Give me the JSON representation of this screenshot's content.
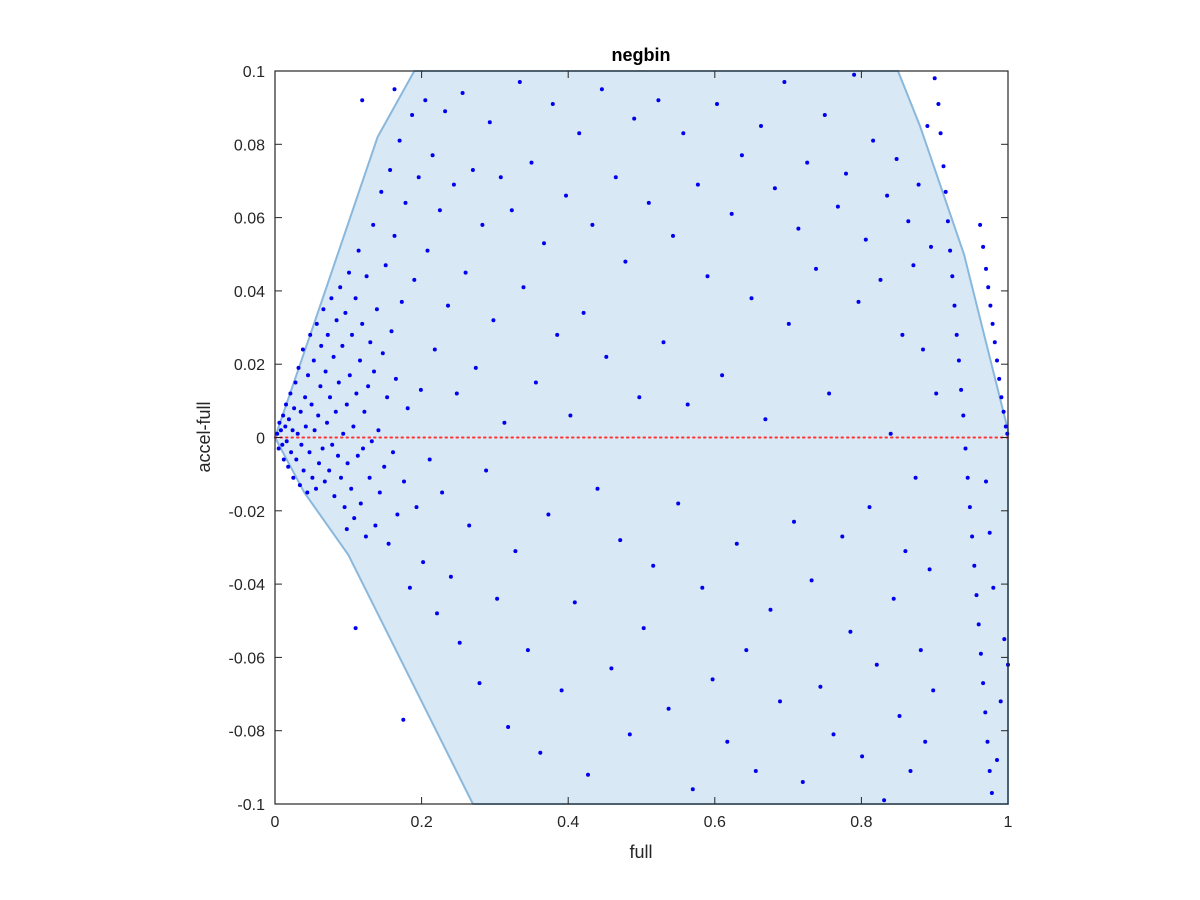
{
  "chart_data": {
    "type": "scatter",
    "title": "negbin",
    "xlabel": "full",
    "ylabel": "accel-full",
    "xlim": [
      0,
      1
    ],
    "ylim": [
      -0.1,
      0.1
    ],
    "xticks": [
      0,
      0.2,
      0.4,
      0.6,
      0.8,
      1
    ],
    "xtick_labels": [
      "0",
      "0.2",
      "0.4",
      "0.6",
      "0.8",
      "1"
    ],
    "yticks": [
      -0.1,
      -0.08,
      -0.06,
      -0.04,
      -0.02,
      0,
      0.02,
      0.04,
      0.06,
      0.08,
      0.1
    ],
    "ytick_labels": [
      "-0.1",
      "-0.08",
      "-0.06",
      "-0.04",
      "-0.02",
      "0",
      "0.02",
      "0.04",
      "0.06",
      "0.08",
      "0.1"
    ],
    "grid": false,
    "legend": "none",
    "colors": {
      "points": "#0000ee",
      "region_fill": "#d8e8f4",
      "region_edge": "#8ab8dc",
      "zero_line": "#ff3333",
      "axes": "#262626"
    },
    "region": [
      [
        0,
        0
      ],
      [
        0.06,
        0.035
      ],
      [
        0.14,
        0.082
      ],
      [
        0.19,
        0.1
      ],
      [
        0.85,
        0.1
      ],
      [
        0.88,
        0.085
      ],
      [
        0.94,
        0.05
      ],
      [
        1.0,
        0.002
      ],
      [
        1.0,
        -0.1
      ],
      [
        0.27,
        -0.1
      ],
      [
        0.2,
        -0.072
      ],
      [
        0.1,
        -0.032
      ],
      [
        0.04,
        -0.015
      ],
      [
        0,
        0
      ]
    ],
    "zero_line": {
      "y": 0,
      "style": "dotted"
    },
    "points": [
      [
        0.003,
        0.001
      ],
      [
        0.005,
        -0.003
      ],
      [
        0.006,
        0.004
      ],
      [
        0.008,
        0.002
      ],
      [
        0.01,
        -0.002
      ],
      [
        0.011,
        0.006
      ],
      [
        0.012,
        -0.006
      ],
      [
        0.014,
        0.003
      ],
      [
        0.015,
        0.009
      ],
      [
        0.016,
        -0.001
      ],
      [
        0.018,
        -0.008
      ],
      [
        0.019,
        0.005
      ],
      [
        0.021,
        0.012
      ],
      [
        0.022,
        -0.004
      ],
      [
        0.024,
        0.002
      ],
      [
        0.025,
        -0.011
      ],
      [
        0.026,
        0.008
      ],
      [
        0.028,
        0.015
      ],
      [
        0.029,
        -0.006
      ],
      [
        0.031,
        0.001
      ],
      [
        0.032,
        0.019
      ],
      [
        0.034,
        -0.013
      ],
      [
        0.035,
        0.007
      ],
      [
        0.036,
        -0.002
      ],
      [
        0.038,
        0.024
      ],
      [
        0.039,
        -0.009
      ],
      [
        0.041,
        0.011
      ],
      [
        0.042,
        0.003
      ],
      [
        0.044,
        -0.015
      ],
      [
        0.045,
        0.017
      ],
      [
        0.047,
        -0.004
      ],
      [
        0.048,
        0.028
      ],
      [
        0.05,
        0.009
      ],
      [
        0.051,
        -0.011
      ],
      [
        0.053,
        0.021
      ],
      [
        0.054,
        0.002
      ],
      [
        0.056,
        -0.014
      ],
      [
        0.057,
        0.031
      ],
      [
        0.059,
        0.006
      ],
      [
        0.06,
        -0.007
      ],
      [
        0.062,
        0.014
      ],
      [
        0.063,
        0.025
      ],
      [
        0.065,
        -0.003
      ],
      [
        0.066,
        0.035
      ],
      [
        0.068,
        -0.012
      ],
      [
        0.069,
        0.018
      ],
      [
        0.071,
        0.004
      ],
      [
        0.072,
        0.028
      ],
      [
        0.074,
        -0.009
      ],
      [
        0.075,
        0.011
      ],
      [
        0.077,
        0.038
      ],
      [
        0.078,
        -0.002
      ],
      [
        0.08,
        0.022
      ],
      [
        0.081,
        -0.016
      ],
      [
        0.083,
        0.007
      ],
      [
        0.084,
        0.032
      ],
      [
        0.086,
        -0.005
      ],
      [
        0.087,
        0.015
      ],
      [
        0.089,
        0.041
      ],
      [
        0.09,
        -0.011
      ],
      [
        0.092,
        0.025
      ],
      [
        0.093,
        0.001
      ],
      [
        0.095,
        -0.019
      ],
      [
        0.096,
        0.034
      ],
      [
        0.098,
        0.009
      ],
      [
        0.099,
        -0.007
      ],
      [
        0.101,
        0.045
      ],
      [
        0.102,
        0.017
      ],
      [
        0.104,
        -0.014
      ],
      [
        0.105,
        0.028
      ],
      [
        0.107,
        0.003
      ],
      [
        0.108,
        -0.022
      ],
      [
        0.11,
        0.038
      ],
      [
        0.111,
        0.012
      ],
      [
        0.113,
        -0.005
      ],
      [
        0.114,
        0.051
      ],
      [
        0.116,
        0.021
      ],
      [
        0.117,
        -0.018
      ],
      [
        0.119,
        0.031
      ],
      [
        0.12,
        -0.003
      ],
      [
        0.122,
        0.007
      ],
      [
        0.124,
        -0.027
      ],
      [
        0.125,
        0.044
      ],
      [
        0.127,
        0.014
      ],
      [
        0.129,
        -0.011
      ],
      [
        0.13,
        0.026
      ],
      [
        0.132,
        -0.001
      ],
      [
        0.134,
        0.058
      ],
      [
        0.135,
        0.018
      ],
      [
        0.137,
        -0.024
      ],
      [
        0.139,
        0.035
      ],
      [
        0.141,
        0.002
      ],
      [
        0.143,
        -0.015
      ],
      [
        0.145,
        0.067
      ],
      [
        0.147,
        0.023
      ],
      [
        0.149,
        -0.008
      ],
      [
        0.151,
        0.047
      ],
      [
        0.153,
        0.011
      ],
      [
        0.155,
        -0.029
      ],
      [
        0.157,
        0.073
      ],
      [
        0.159,
        0.029
      ],
      [
        0.161,
        -0.004
      ],
      [
        0.163,
        0.055
      ],
      [
        0.165,
        0.016
      ],
      [
        0.167,
        -0.021
      ],
      [
        0.17,
        0.081
      ],
      [
        0.173,
        0.037
      ],
      [
        0.176,
        -0.012
      ],
      [
        0.178,
        0.064
      ],
      [
        0.181,
        0.008
      ],
      [
        0.184,
        -0.041
      ],
      [
        0.187,
        0.088
      ],
      [
        0.19,
        0.043
      ],
      [
        0.193,
        -0.019
      ],
      [
        0.196,
        0.071
      ],
      [
        0.199,
        0.013
      ],
      [
        0.202,
        -0.034
      ],
      [
        0.205,
        0.092
      ],
      [
        0.208,
        0.051
      ],
      [
        0.211,
        -0.006
      ],
      [
        0.215,
        0.077
      ],
      [
        0.218,
        0.024
      ],
      [
        0.221,
        -0.048
      ],
      [
        0.225,
        0.062
      ],
      [
        0.228,
        -0.015
      ],
      [
        0.232,
        0.089
      ],
      [
        0.236,
        0.036
      ],
      [
        0.24,
        -0.038
      ],
      [
        0.244,
        0.069
      ],
      [
        0.248,
        0.012
      ],
      [
        0.252,
        -0.056
      ],
      [
        0.256,
        0.094
      ],
      [
        0.26,
        0.045
      ],
      [
        0.265,
        -0.024
      ],
      [
        0.27,
        0.073
      ],
      [
        0.274,
        0.019
      ],
      [
        0.279,
        -0.067
      ],
      [
        0.283,
        0.058
      ],
      [
        0.288,
        -0.009
      ],
      [
        0.293,
        0.086
      ],
      [
        0.298,
        0.032
      ],
      [
        0.303,
        -0.044
      ],
      [
        0.308,
        0.071
      ],
      [
        0.313,
        0.004
      ],
      [
        0.318,
        -0.079
      ],
      [
        0.323,
        0.062
      ],
      [
        0.328,
        -0.031
      ],
      [
        0.334,
        0.097
      ],
      [
        0.339,
        0.041
      ],
      [
        0.345,
        -0.058
      ],
      [
        0.35,
        0.075
      ],
      [
        0.356,
        0.015
      ],
      [
        0.362,
        -0.086
      ],
      [
        0.367,
        0.053
      ],
      [
        0.373,
        -0.021
      ],
      [
        0.379,
        0.091
      ],
      [
        0.385,
        0.028
      ],
      [
        0.391,
        -0.069
      ],
      [
        0.397,
        0.066
      ],
      [
        0.403,
        0.006
      ],
      [
        0.409,
        -0.045
      ],
      [
        0.415,
        0.083
      ],
      [
        0.421,
        0.034
      ],
      [
        0.427,
        -0.092
      ],
      [
        0.433,
        0.058
      ],
      [
        0.44,
        -0.014
      ],
      [
        0.446,
        0.095
      ],
      [
        0.452,
        0.022
      ],
      [
        0.459,
        -0.063
      ],
      [
        0.465,
        0.071
      ],
      [
        0.471,
        -0.028
      ],
      [
        0.478,
        0.048
      ],
      [
        0.484,
        -0.081
      ],
      [
        0.49,
        0.087
      ],
      [
        0.497,
        0.011
      ],
      [
        0.503,
        -0.052
      ],
      [
        0.51,
        0.064
      ],
      [
        0.516,
        -0.035
      ],
      [
        0.523,
        0.092
      ],
      [
        0.53,
        0.026
      ],
      [
        0.537,
        -0.074
      ],
      [
        0.543,
        0.055
      ],
      [
        0.55,
        -0.018
      ],
      [
        0.557,
        0.083
      ],
      [
        0.563,
        0.009
      ],
      [
        0.57,
        -0.096
      ],
      [
        0.577,
        0.069
      ],
      [
        0.583,
        -0.041
      ],
      [
        0.59,
        0.044
      ],
      [
        0.597,
        -0.066
      ],
      [
        0.603,
        0.091
      ],
      [
        0.61,
        0.017
      ],
      [
        0.617,
        -0.083
      ],
      [
        0.623,
        0.061
      ],
      [
        0.63,
        -0.029
      ],
      [
        0.637,
        0.077
      ],
      [
        0.643,
        -0.058
      ],
      [
        0.65,
        0.038
      ],
      [
        0.656,
        -0.091
      ],
      [
        0.663,
        0.085
      ],
      [
        0.669,
        0.005
      ],
      [
        0.676,
        -0.047
      ],
      [
        0.682,
        0.068
      ],
      [
        0.689,
        -0.072
      ],
      [
        0.695,
        0.097
      ],
      [
        0.701,
        0.031
      ],
      [
        0.708,
        -0.023
      ],
      [
        0.714,
        0.057
      ],
      [
        0.72,
        -0.094
      ],
      [
        0.726,
        0.075
      ],
      [
        0.732,
        -0.039
      ],
      [
        0.738,
        0.046
      ],
      [
        0.744,
        -0.068
      ],
      [
        0.75,
        0.088
      ],
      [
        0.756,
        0.012
      ],
      [
        0.762,
        -0.081
      ],
      [
        0.768,
        0.063
      ],
      [
        0.774,
        -0.027
      ],
      [
        0.779,
        0.072
      ],
      [
        0.785,
        -0.053
      ],
      [
        0.79,
        0.099
      ],
      [
        0.796,
        0.037
      ],
      [
        0.801,
        -0.087
      ],
      [
        0.806,
        0.054
      ],
      [
        0.811,
        -0.019
      ],
      [
        0.816,
        0.081
      ],
      [
        0.821,
        -0.062
      ],
      [
        0.826,
        0.043
      ],
      [
        0.831,
        -0.099
      ],
      [
        0.835,
        0.066
      ],
      [
        0.84,
        0.001
      ],
      [
        0.844,
        -0.044
      ],
      [
        0.848,
        0.076
      ],
      [
        0.852,
        -0.076
      ],
      [
        0.856,
        0.028
      ],
      [
        0.86,
        -0.031
      ],
      [
        0.864,
        0.059
      ],
      [
        0.867,
        -0.091
      ],
      [
        0.871,
        0.047
      ],
      [
        0.874,
        -0.011
      ],
      [
        0.878,
        0.069
      ],
      [
        0.881,
        -0.058
      ],
      [
        0.884,
        0.024
      ],
      [
        0.887,
        -0.083
      ],
      [
        0.89,
        0.085
      ],
      [
        0.893,
        -0.036
      ],
      [
        0.895,
        0.052
      ],
      [
        0.898,
        -0.069
      ],
      [
        0.9,
        0.098
      ],
      [
        0.902,
        0.012
      ],
      [
        0.905,
        0.091
      ],
      [
        0.908,
        0.083
      ],
      [
        0.912,
        0.074
      ],
      [
        0.915,
        0.067
      ],
      [
        0.918,
        0.059
      ],
      [
        0.921,
        0.051
      ],
      [
        0.924,
        0.044
      ],
      [
        0.927,
        0.036
      ],
      [
        0.93,
        0.028
      ],
      [
        0.933,
        0.021
      ],
      [
        0.936,
        0.013
      ],
      [
        0.939,
        0.006
      ],
      [
        0.942,
        -0.003
      ],
      [
        0.945,
        -0.011
      ],
      [
        0.948,
        -0.019
      ],
      [
        0.951,
        -0.027
      ],
      [
        0.954,
        -0.035
      ],
      [
        0.957,
        -0.043
      ],
      [
        0.96,
        -0.051
      ],
      [
        0.963,
        -0.059
      ],
      [
        0.966,
        -0.067
      ],
      [
        0.969,
        -0.075
      ],
      [
        0.972,
        -0.083
      ],
      [
        0.975,
        -0.091
      ],
      [
        0.978,
        -0.097
      ],
      [
        0.962,
        0.058
      ],
      [
        0.966,
        0.052
      ],
      [
        0.97,
        0.046
      ],
      [
        0.973,
        0.041
      ],
      [
        0.976,
        0.036
      ],
      [
        0.979,
        0.031
      ],
      [
        0.982,
        0.026
      ],
      [
        0.985,
        0.021
      ],
      [
        0.988,
        0.016
      ],
      [
        0.991,
        0.011
      ],
      [
        0.994,
        0.007
      ],
      [
        0.997,
        0.003
      ],
      [
        0.999,
        0.001
      ],
      [
        1.0,
        -0.062
      ],
      [
        0.995,
        -0.055
      ],
      [
        0.99,
        -0.072
      ],
      [
        0.985,
        -0.088
      ],
      [
        0.98,
        -0.041
      ],
      [
        0.975,
        -0.026
      ],
      [
        0.97,
        -0.012
      ],
      [
        0.119,
        0.092
      ],
      [
        0.11,
        -0.052
      ],
      [
        0.175,
        -0.077
      ],
      [
        0.163,
        0.095
      ],
      [
        0.098,
        -0.025
      ]
    ]
  }
}
